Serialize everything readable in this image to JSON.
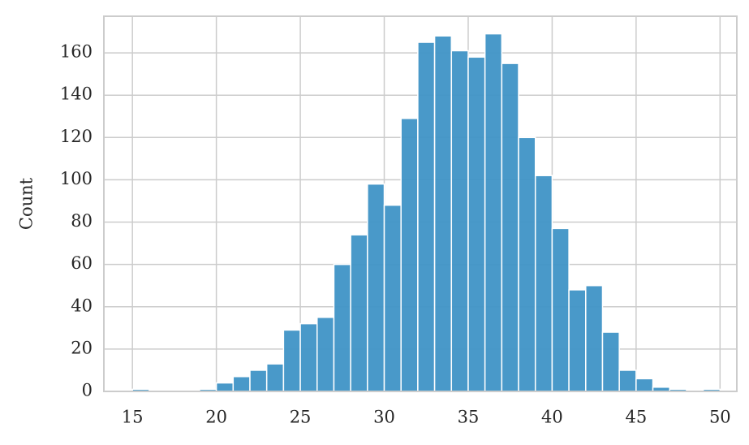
{
  "chart_data": {
    "type": "histogram",
    "ylabel": "Count",
    "bins": [
      15,
      16,
      17,
      18,
      19,
      20,
      21,
      22,
      23,
      24,
      25,
      26,
      27,
      28,
      29,
      30,
      31,
      32,
      33,
      34,
      35,
      36,
      37,
      38,
      39,
      40,
      41,
      42,
      43,
      44,
      45,
      46,
      47,
      48,
      49,
      50
    ],
    "values": [
      1,
      0,
      0,
      0,
      1,
      4,
      7,
      10,
      13,
      29,
      32,
      35,
      60,
      74,
      98,
      88,
      129,
      165,
      168,
      161,
      158,
      169,
      155,
      120,
      102,
      77,
      48,
      50,
      28,
      10,
      6,
      2,
      1,
      0,
      1
    ],
    "color": "#3f93c6",
    "xlim": [
      13.3,
      51.0
    ],
    "xticks": [
      15,
      20,
      25,
      30,
      35,
      40,
      45,
      50
    ],
    "ylim": [
      0,
      177.3
    ],
    "yticks": [
      0,
      20,
      40,
      60,
      80,
      100,
      120,
      140,
      160
    ],
    "grid": true
  }
}
